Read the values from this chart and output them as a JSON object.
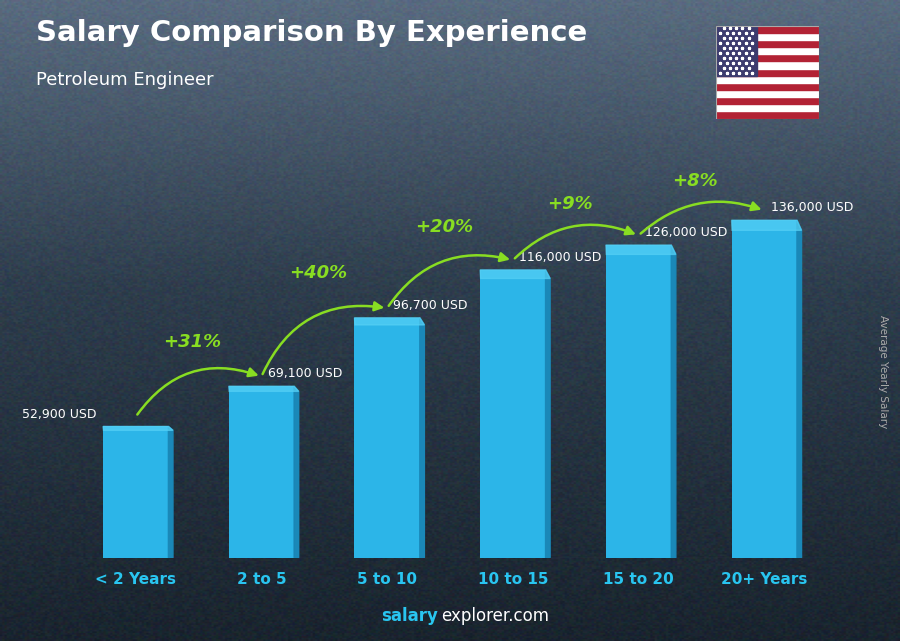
{
  "title": "Salary Comparison By Experience",
  "subtitle": "Petroleum Engineer",
  "categories": [
    "< 2 Years",
    "2 to 5",
    "5 to 10",
    "10 to 15",
    "15 to 20",
    "20+ Years"
  ],
  "values": [
    52900,
    69100,
    96700,
    116000,
    126000,
    136000
  ],
  "labels": [
    "52,900 USD",
    "69,100 USD",
    "96,700 USD",
    "116,000 USD",
    "126,000 USD",
    "136,000 USD"
  ],
  "pct_changes": [
    "+31%",
    "+40%",
    "+20%",
    "+9%",
    "+8%"
  ],
  "bar_color_main": "#2cb5e8",
  "bar_color_side": "#1a88b8",
  "bar_color_top": "#55d0f5",
  "bg_color": "#3a4a5a",
  "title_color": "#ffffff",
  "subtitle_color": "#ffffff",
  "label_color": "#ffffff",
  "pct_color": "#88dd22",
  "xticklabel_color": "#29c5f0",
  "footer_salary_color": "#29c5f0",
  "footer_explorer_color": "#ffffff",
  "ylabel_text": "Average Yearly Salary",
  "ylabel_color": "#aaaaaa",
  "ylim": [
    0,
    155000
  ],
  "bar_width": 0.52
}
